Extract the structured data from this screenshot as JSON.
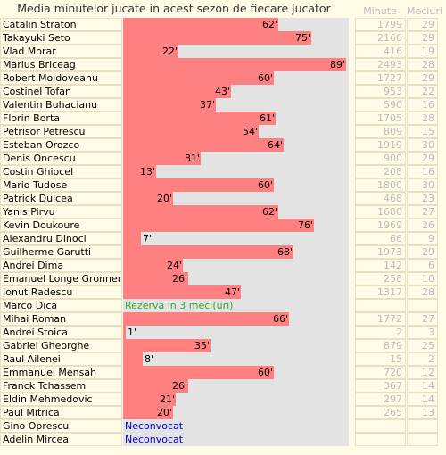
{
  "title": "Media minutelor jucate in acest sezon de fiecare jucator",
  "columns": {
    "minute": "Minute",
    "meciuri": "Meciuri"
  },
  "colors": {
    "bar": "#ff8080",
    "track": "#e3e3e3",
    "reserve": "#33aa33",
    "not_called": "#0000cc"
  },
  "max_minutes": 90,
  "players": [
    {
      "name": "Catalin Straton",
      "avg": 62,
      "avg_label": "62'",
      "minutes": "1799",
      "matches": "29"
    },
    {
      "name": "Takayuki Seto",
      "avg": 75,
      "avg_label": "75'",
      "minutes": "2166",
      "matches": "29"
    },
    {
      "name": "Vlad Morar",
      "avg": 22,
      "avg_label": "22'",
      "minutes": "416",
      "matches": "19"
    },
    {
      "name": "Marius Briceag",
      "avg": 89,
      "avg_label": "89'",
      "minutes": "2493",
      "matches": "28"
    },
    {
      "name": "Robert Moldoveanu",
      "avg": 60,
      "avg_label": "60'",
      "minutes": "1727",
      "matches": "29"
    },
    {
      "name": "Costinel Tofan",
      "avg": 43,
      "avg_label": "43'",
      "minutes": "953",
      "matches": "22"
    },
    {
      "name": "Valentin Buhacianu",
      "avg": 37,
      "avg_label": "37'",
      "minutes": "590",
      "matches": "16"
    },
    {
      "name": "Florin Borta",
      "avg": 61,
      "avg_label": "61'",
      "minutes": "1705",
      "matches": "28"
    },
    {
      "name": "Petrisor Petrescu",
      "avg": 54,
      "avg_label": "54'",
      "minutes": "809",
      "matches": "15"
    },
    {
      "name": "Esteban Orozco",
      "avg": 64,
      "avg_label": "64'",
      "minutes": "1919",
      "matches": "30"
    },
    {
      "name": "Denis Oncescu",
      "avg": 31,
      "avg_label": "31'",
      "minutes": "900",
      "matches": "29"
    },
    {
      "name": "Costin Ghiocel",
      "avg": 13,
      "avg_label": "13'",
      "minutes": "208",
      "matches": "16"
    },
    {
      "name": "Mario Tudose",
      "avg": 60,
      "avg_label": "60'",
      "minutes": "1800",
      "matches": "30"
    },
    {
      "name": "Patrick Dulcea",
      "avg": 20,
      "avg_label": "20'",
      "minutes": "468",
      "matches": "23"
    },
    {
      "name": "Yanis Pirvu",
      "avg": 62,
      "avg_label": "62'",
      "minutes": "1680",
      "matches": "27"
    },
    {
      "name": "Kevin Doukoure",
      "avg": 76,
      "avg_label": "76'",
      "minutes": "1969",
      "matches": "26"
    },
    {
      "name": "Alexandru Dinoci",
      "avg": 7,
      "avg_label": "7'",
      "minutes": "66",
      "matches": "9"
    },
    {
      "name": "Guilherme Garutti",
      "avg": 68,
      "avg_label": "68'",
      "minutes": "1973",
      "matches": "29"
    },
    {
      "name": "Andrei Dima",
      "avg": 24,
      "avg_label": "24'",
      "minutes": "142",
      "matches": "6"
    },
    {
      "name": "Emanuel Longe Gronner",
      "avg": 26,
      "avg_label": "26'",
      "minutes": "258",
      "matches": "10"
    },
    {
      "name": "Ionut Radescu",
      "avg": 47,
      "avg_label": "47'",
      "minutes": "1317",
      "matches": "28"
    },
    {
      "name": "Marco Dica",
      "note": "Rezerva in 3 meci(uri)",
      "note_type": "reserve",
      "minutes": "",
      "matches": ""
    },
    {
      "name": "Mihai Roman",
      "avg": 66,
      "avg_label": "66'",
      "minutes": "1772",
      "matches": "27"
    },
    {
      "name": "Andrei Stoica",
      "avg": 1,
      "avg_label": "1'",
      "minutes": "2",
      "matches": "3"
    },
    {
      "name": "Gabriel Gheorghe",
      "avg": 35,
      "avg_label": "35'",
      "minutes": "879",
      "matches": "25"
    },
    {
      "name": "Raul Ailenei",
      "avg": 8,
      "avg_label": "8'",
      "minutes": "15",
      "matches": "2"
    },
    {
      "name": "Emmanuel Mensah",
      "avg": 60,
      "avg_label": "60'",
      "minutes": "720",
      "matches": "12"
    },
    {
      "name": "Franck Tchassem",
      "avg": 26,
      "avg_label": "26'",
      "minutes": "367",
      "matches": "14"
    },
    {
      "name": "Eldin Mehmedovic",
      "avg": 21,
      "avg_label": "21'",
      "minutes": "297",
      "matches": "14"
    },
    {
      "name": "Paul Mitrica",
      "avg": 20,
      "avg_label": "20'",
      "minutes": "265",
      "matches": "13"
    },
    {
      "name": "Gino Oprescu",
      "note": "Neconvocat",
      "note_type": "not_called",
      "minutes": "",
      "matches": ""
    },
    {
      "name": "Adelin Mircea",
      "note": "Neconvocat",
      "note_type": "not_called",
      "minutes": "",
      "matches": ""
    }
  ]
}
